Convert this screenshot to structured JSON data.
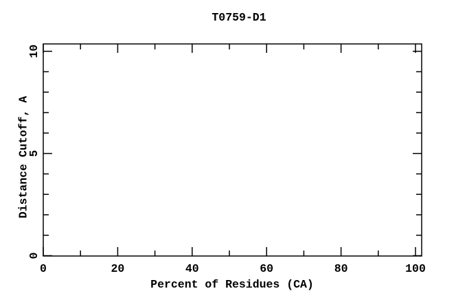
{
  "page": {
    "background_color": "#ffffff"
  },
  "chart_data": {
    "type": "line",
    "title": "T0759-D1",
    "xlabel": "Percent of Residues (CA)",
    "ylabel": "Distance Cutoff, A",
    "xlim": [
      0,
      101.7
    ],
    "ylim": [
      0,
      10.4
    ],
    "x_major_ticks": [
      0,
      20,
      40,
      60,
      80,
      100
    ],
    "x_minor_ticks": [
      10,
      30,
      50,
      70,
      90
    ],
    "y_major_ticks": [
      0,
      5,
      10
    ],
    "y_minor_ticks": [
      1,
      2,
      3,
      4,
      6,
      7,
      8,
      9
    ],
    "grid": false,
    "legend": "none",
    "frame": "full-box-inward-ticks",
    "series": [],
    "axis_color": "#000000",
    "text_color": "#000000"
  }
}
